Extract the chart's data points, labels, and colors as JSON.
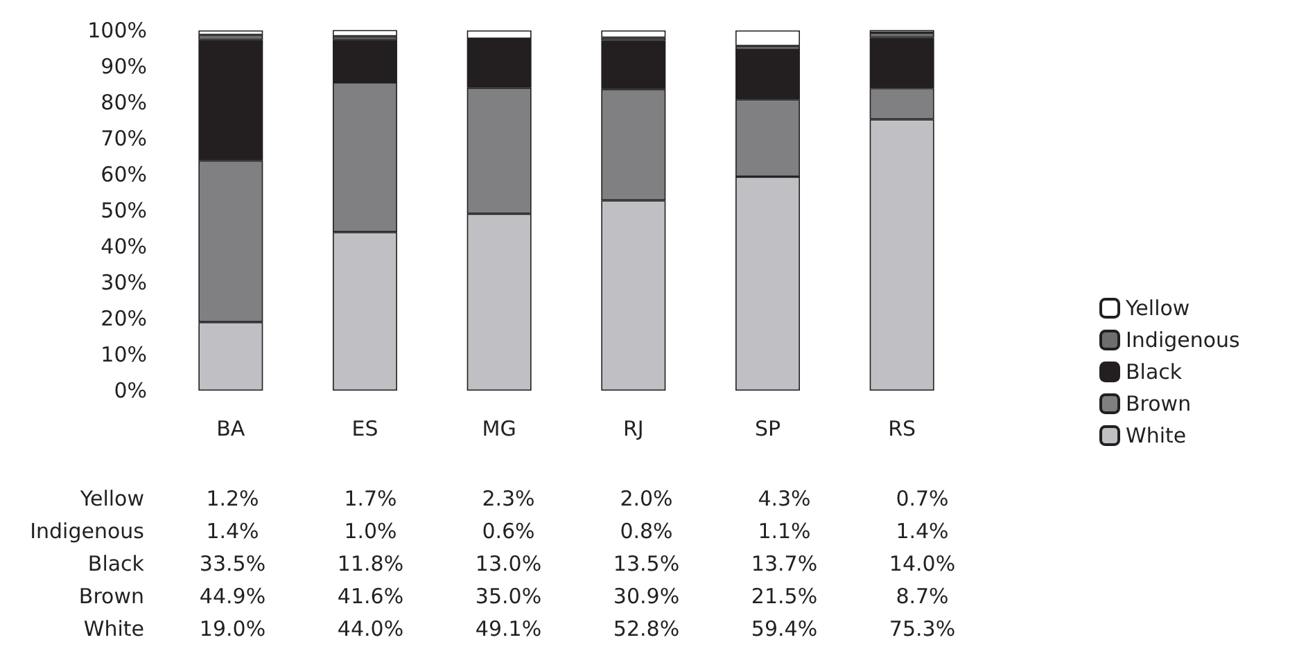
{
  "chart_data": {
    "type": "bar",
    "stacked": true,
    "categories": [
      "BA",
      "ES",
      "MG",
      "RJ",
      "SP",
      "RS"
    ],
    "series": [
      {
        "name": "White",
        "color": "#c0c0c4",
        "values": [
          19.0,
          44.0,
          49.1,
          52.8,
          59.4,
          75.3
        ],
        "value_labels": [
          "19.0%",
          "44.0%",
          "49.1%",
          "52.8%",
          "59.4%",
          "75.3%"
        ]
      },
      {
        "name": "Brown",
        "color": "#808083",
        "values": [
          44.9,
          41.6,
          35.0,
          30.9,
          21.5,
          8.7
        ],
        "value_labels": [
          "44.9%",
          "41.6%",
          "35.0%",
          "30.9%",
          "21.5%",
          "8.7%"
        ]
      },
      {
        "name": "Black",
        "color": "#231f20",
        "values": [
          33.5,
          11.8,
          13.0,
          13.5,
          13.7,
          14.0
        ],
        "value_labels": [
          "33.5%",
          "11.8%",
          "13.0%",
          "13.5%",
          "13.7%",
          "14.0%"
        ]
      },
      {
        "name": "Indigenous",
        "color": "#6d6e70",
        "values": [
          1.4,
          1.0,
          0.6,
          0.8,
          1.1,
          1.4
        ],
        "value_labels": [
          "1.4%",
          "1.0%",
          "0.6%",
          "0.8%",
          "1.1%",
          "1.4%"
        ]
      },
      {
        "name": "Yellow",
        "color": "#ffffff",
        "values": [
          1.2,
          1.7,
          2.3,
          2.0,
          4.3,
          0.7
        ],
        "value_labels": [
          "1.2%",
          "1.7%",
          "2.3%",
          "2.0%",
          "4.3%",
          "0.7%"
        ]
      }
    ],
    "ylim": [
      0,
      100
    ],
    "yticks": [
      {
        "value": 0,
        "label": "0%"
      },
      {
        "value": 10,
        "label": "10%"
      },
      {
        "value": 20,
        "label": "20%"
      },
      {
        "value": 30,
        "label": "30%"
      },
      {
        "value": 40,
        "label": "40%"
      },
      {
        "value": 50,
        "label": "50%"
      },
      {
        "value": 60,
        "label": "60%"
      },
      {
        "value": 70,
        "label": "70%"
      },
      {
        "value": 80,
        "label": "80%"
      },
      {
        "value": 90,
        "label": "90%"
      },
      {
        "value": 100,
        "label": "100%"
      }
    ],
    "grid": false,
    "legend": "right"
  }
}
